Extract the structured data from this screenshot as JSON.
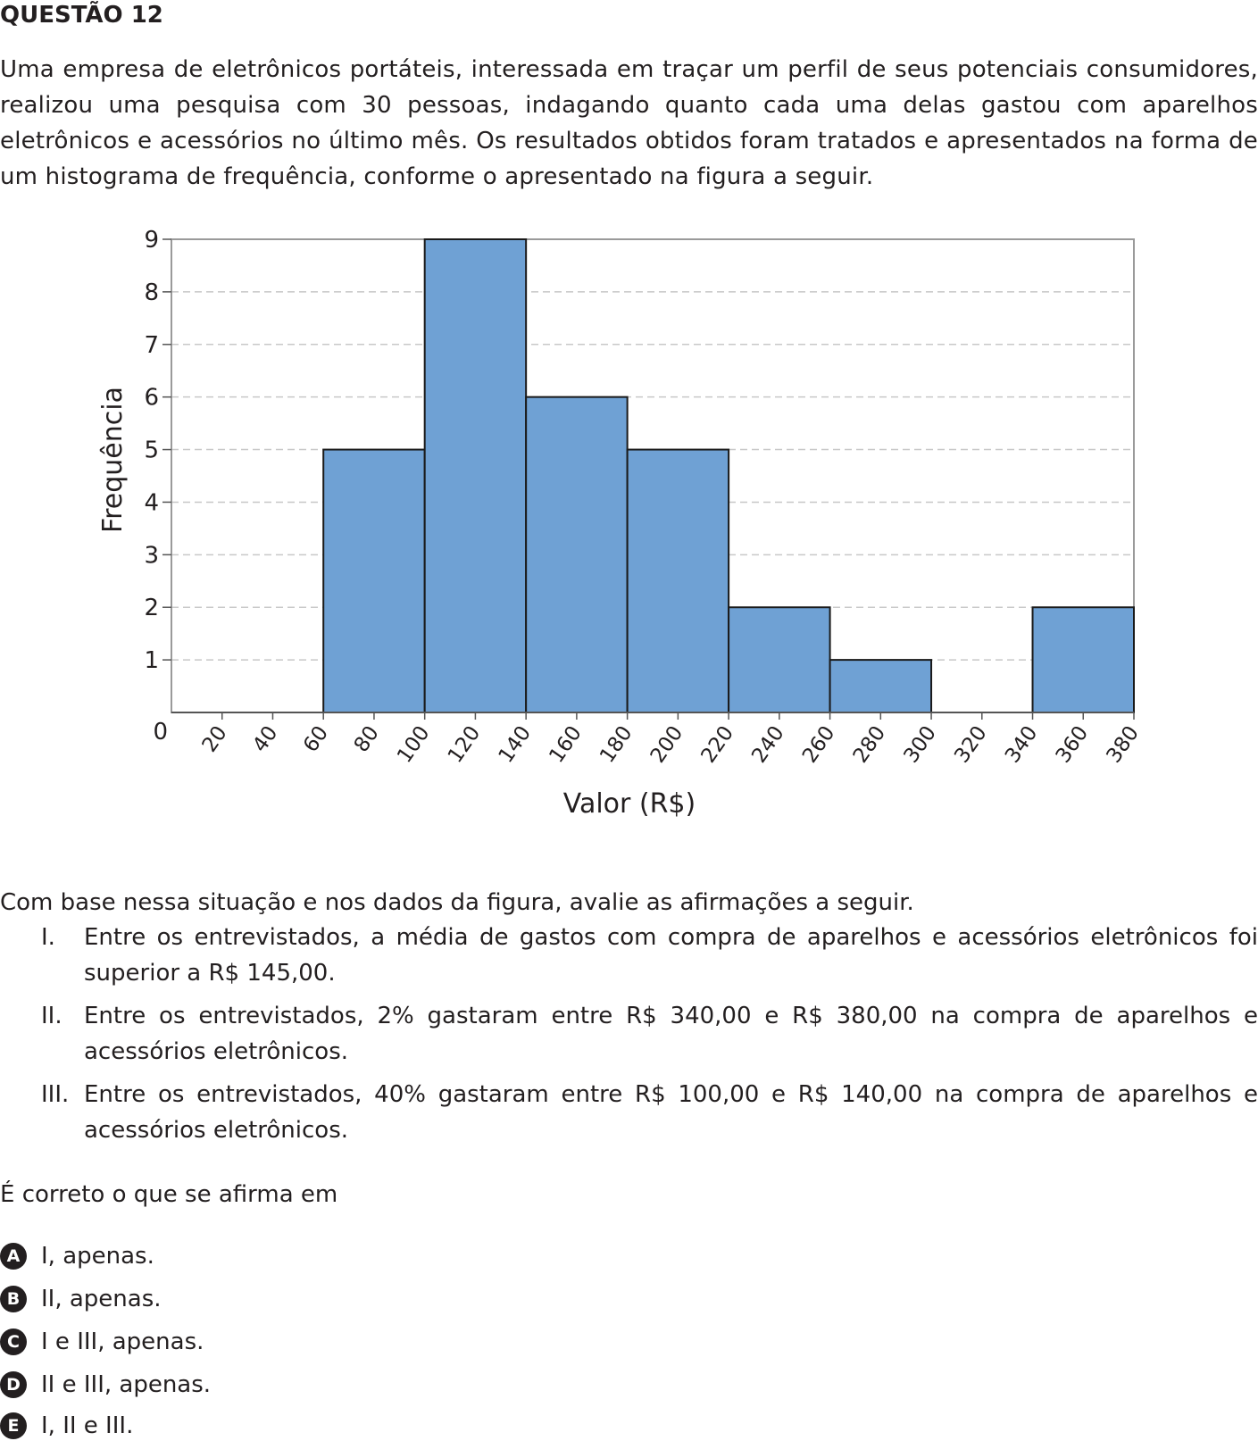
{
  "question": {
    "title": "QUESTÃO 12",
    "intro": "Uma empresa de eletrônicos portáteis, interessada em traçar um perfil de seus potenciais consumidores, realizou uma pesquisa com 30 pessoas, indagando quanto cada uma delas gastou com aparelhos eletrônicos e acessórios no último mês. Os resultados obtidos foram tratados e apresentados na forma de um histograma de frequência, conforme o apresentado na figura a seguir.",
    "lead": "Com base nessa situação e nos dados da figura, avalie as afirmações a seguir.",
    "statements": [
      {
        "num": "I.",
        "text": "Entre os entrevistados, a média de gastos com compra de aparelhos e acessórios eletrônicos foi superior a R$ 145,00."
      },
      {
        "num": "II.",
        "text": "Entre os entrevistados, 2% gastaram entre R$ 340,00 e R$ 380,00 na compra de aparelhos e acessórios eletrônicos."
      },
      {
        "num": "III.",
        "text": "Entre os entrevistados, 40% gastaram entre R$ 100,00 e R$ 140,00 na compra de aparelhos e acessórios eletrônicos."
      }
    ],
    "prompt": "É correto o que se afirma em",
    "options": [
      {
        "letter": "A",
        "text": "I, apenas."
      },
      {
        "letter": "B",
        "text": "II, apenas."
      },
      {
        "letter": "C",
        "text": "I e III, apenas."
      },
      {
        "letter": "D",
        "text": "II e III, apenas."
      },
      {
        "letter": "E",
        "text": "I, II e III."
      }
    ]
  },
  "chart_data": {
    "type": "bar",
    "title": "",
    "xlabel": "Valor (R$)",
    "ylabel": "Frequência",
    "xlim": [
      0,
      380
    ],
    "ylim": [
      0,
      9
    ],
    "xticks": [
      20,
      40,
      60,
      80,
      100,
      120,
      140,
      160,
      180,
      200,
      220,
      240,
      260,
      280,
      300,
      320,
      340,
      360,
      380
    ],
    "yticks": [
      0,
      1,
      2,
      3,
      4,
      5,
      6,
      7,
      8,
      9
    ],
    "grid": "horizontal dashed",
    "bins": [
      {
        "from": 60,
        "to": 100,
        "value": 5
      },
      {
        "from": 100,
        "to": 140,
        "value": 9
      },
      {
        "from": 140,
        "to": 180,
        "value": 6
      },
      {
        "from": 180,
        "to": 220,
        "value": 5
      },
      {
        "from": 220,
        "to": 260,
        "value": 2
      },
      {
        "from": 260,
        "to": 300,
        "value": 1
      },
      {
        "from": 300,
        "to": 340,
        "value": 0
      },
      {
        "from": 340,
        "to": 380,
        "value": 2
      }
    ],
    "colors": {
      "bar": "#6fa1d4",
      "bar_edge": "#1a1a1a",
      "grid": "#c8c8c8",
      "frame": "#9a9a9a"
    }
  }
}
